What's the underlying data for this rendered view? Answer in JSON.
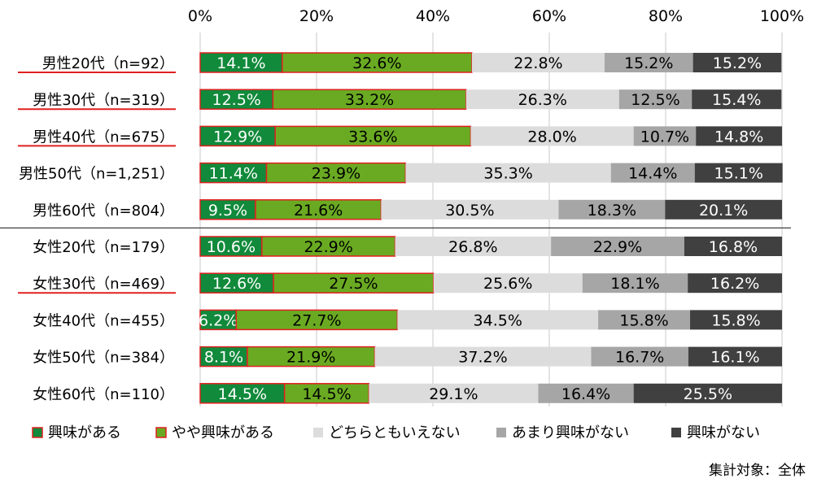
{
  "chart_data": {
    "type": "bar",
    "orientation": "horizontal",
    "stacked": "percent",
    "xlim": [
      0,
      100
    ],
    "x_ticks": [
      "0%",
      "20%",
      "40%",
      "60%",
      "80%",
      "100%"
    ],
    "grid": true,
    "legend_position": "bottom",
    "note": "集計対象：全体",
    "categories": [
      "男性20代（n=92）",
      "男性30代（n=319）",
      "男性40代（n=675）",
      "男性50代（n=1,251）",
      "男性60代（n=804）",
      "女性20代（n=179）",
      "女性30代（n=469）",
      "女性40代（n=455）",
      "女性50代（n=384）",
      "女性60代（n=110）"
    ],
    "underlined_categories": [
      0,
      1,
      2,
      6
    ],
    "group_separator_after": 4,
    "series": [
      {
        "name": "興味がある",
        "color": "#118a3b",
        "label_color": "#ffffff",
        "values": [
          14.1,
          12.5,
          12.9,
          11.4,
          9.5,
          10.6,
          12.6,
          6.2,
          8.1,
          14.5
        ]
      },
      {
        "name": "やや興味がある",
        "color": "#6aaa22",
        "label_color": "#000000",
        "values": [
          32.6,
          33.2,
          33.6,
          23.9,
          21.6,
          22.9,
          27.5,
          27.7,
          21.9,
          14.5
        ]
      },
      {
        "name": "どちらともいえない",
        "color": "#dcdcdc",
        "label_color": "#000000",
        "values": [
          22.8,
          26.3,
          28.0,
          35.3,
          30.5,
          26.8,
          25.6,
          34.5,
          37.2,
          29.1
        ]
      },
      {
        "name": "あまり興味がない",
        "color": "#a6a6a6",
        "label_color": "#000000",
        "values": [
          15.2,
          12.5,
          10.7,
          14.4,
          18.3,
          22.9,
          18.1,
          15.8,
          16.7,
          16.4
        ]
      },
      {
        "name": "興味がない",
        "color": "#404040",
        "label_color": "#ffffff",
        "values": [
          15.2,
          15.4,
          14.8,
          15.1,
          20.1,
          16.8,
          16.2,
          15.8,
          16.1,
          25.5
        ]
      }
    ],
    "highlight_border_color": "#e02020"
  }
}
